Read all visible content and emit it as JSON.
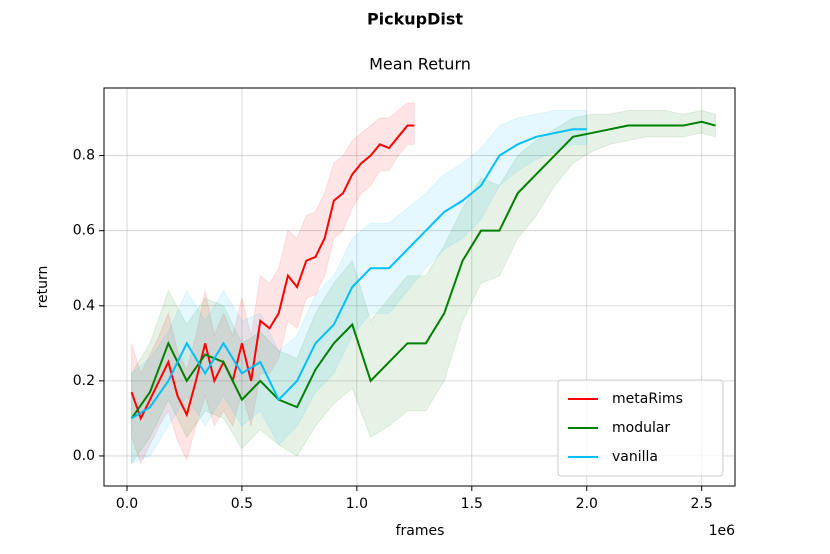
{
  "chart_data": {
    "type": "line",
    "title": "PickupDist",
    "subtitle": "Mean Return",
    "x_label": "frames",
    "y_label": "return",
    "x_offset_label": "1e6",
    "xlim": [
      -0.1,
      2.645
    ],
    "ylim": [
      -0.08,
      0.98
    ],
    "xticks": [
      {
        "value": 0,
        "label": "0.0"
      },
      {
        "value": 0.5,
        "label": "0.5"
      },
      {
        "value": 1,
        "label": "1.0"
      },
      {
        "value": 1.5,
        "label": "1.5"
      },
      {
        "value": 2,
        "label": "2.0"
      },
      {
        "value": 2.5,
        "label": "2.5"
      }
    ],
    "yticks": [
      {
        "value": 0,
        "label": "0.0"
      },
      0.2,
      0.4,
      0.6,
      0.8
    ],
    "grid": true,
    "legend": "lower right",
    "series": [
      {
        "name": "metaRims",
        "color": "#ff0000",
        "x": [
          0.02,
          0.06,
          0.1,
          0.14,
          0.18,
          0.22,
          0.26,
          0.3,
          0.34,
          0.38,
          0.42,
          0.46,
          0.5,
          0.54,
          0.58,
          0.62,
          0.66,
          0.7,
          0.74,
          0.78,
          0.82,
          0.86,
          0.9,
          0.94,
          0.98,
          1.02,
          1.06,
          1.1,
          1.14,
          1.18,
          1.22,
          1.25
        ],
        "values": [
          0.17,
          0.1,
          0.15,
          0.2,
          0.25,
          0.16,
          0.11,
          0.2,
          0.3,
          0.2,
          0.25,
          0.2,
          0.3,
          0.2,
          0.36,
          0.34,
          0.38,
          0.48,
          0.45,
          0.52,
          0.53,
          0.58,
          0.68,
          0.7,
          0.75,
          0.78,
          0.8,
          0.83,
          0.82,
          0.85,
          0.88,
          0.88
        ],
        "lower": [
          0.05,
          -0.02,
          0.03,
          0.08,
          0.12,
          0.04,
          -0.01,
          0.08,
          0.16,
          0.08,
          0.12,
          0.08,
          0.17,
          0.08,
          0.22,
          0.22,
          0.26,
          0.36,
          0.34,
          0.42,
          0.43,
          0.48,
          0.58,
          0.6,
          0.66,
          0.7,
          0.72,
          0.76,
          0.76,
          0.8,
          0.83,
          0.83
        ],
        "upper": [
          0.3,
          0.22,
          0.27,
          0.32,
          0.38,
          0.28,
          0.23,
          0.32,
          0.44,
          0.32,
          0.38,
          0.32,
          0.42,
          0.32,
          0.48,
          0.46,
          0.5,
          0.6,
          0.58,
          0.64,
          0.65,
          0.7,
          0.78,
          0.8,
          0.84,
          0.86,
          0.88,
          0.9,
          0.9,
          0.92,
          0.94,
          0.94
        ]
      },
      {
        "name": "modular",
        "color": "#008000",
        "x": [
          0.02,
          0.1,
          0.18,
          0.26,
          0.34,
          0.42,
          0.5,
          0.58,
          0.66,
          0.74,
          0.82,
          0.9,
          0.98,
          1.06,
          1.14,
          1.22,
          1.3,
          1.38,
          1.46,
          1.54,
          1.62,
          1.7,
          1.78,
          1.86,
          1.94,
          2.02,
          2.1,
          2.18,
          2.26,
          2.34,
          2.42,
          2.5,
          2.56
        ],
        "values": [
          0.1,
          0.17,
          0.3,
          0.2,
          0.27,
          0.25,
          0.15,
          0.2,
          0.15,
          0.13,
          0.23,
          0.3,
          0.35,
          0.2,
          0.25,
          0.3,
          0.3,
          0.38,
          0.52,
          0.6,
          0.6,
          0.7,
          0.75,
          0.8,
          0.85,
          0.86,
          0.87,
          0.88,
          0.88,
          0.88,
          0.88,
          0.89,
          0.88
        ],
        "lower": [
          -0.02,
          0.05,
          0.15,
          0.05,
          0.12,
          0.1,
          0.02,
          0.07,
          0.03,
          0.0,
          0.08,
          0.14,
          0.18,
          0.05,
          0.08,
          0.12,
          0.12,
          0.2,
          0.36,
          0.46,
          0.48,
          0.58,
          0.64,
          0.72,
          0.78,
          0.81,
          0.83,
          0.84,
          0.85,
          0.85,
          0.85,
          0.86,
          0.85
        ],
        "upper": [
          0.22,
          0.3,
          0.44,
          0.35,
          0.42,
          0.4,
          0.3,
          0.33,
          0.28,
          0.26,
          0.38,
          0.46,
          0.52,
          0.36,
          0.42,
          0.48,
          0.48,
          0.56,
          0.66,
          0.74,
          0.72,
          0.8,
          0.84,
          0.87,
          0.9,
          0.91,
          0.91,
          0.92,
          0.92,
          0.92,
          0.91,
          0.92,
          0.91
        ]
      },
      {
        "name": "vanilla",
        "color": "#00bfff",
        "x": [
          0.02,
          0.1,
          0.18,
          0.26,
          0.34,
          0.42,
          0.5,
          0.58,
          0.66,
          0.74,
          0.82,
          0.9,
          0.98,
          1.06,
          1.14,
          1.22,
          1.3,
          1.38,
          1.46,
          1.54,
          1.62,
          1.7,
          1.78,
          1.86,
          1.94,
          2.0
        ],
        "values": [
          0.1,
          0.13,
          0.2,
          0.3,
          0.22,
          0.3,
          0.22,
          0.25,
          0.15,
          0.2,
          0.3,
          0.35,
          0.45,
          0.5,
          0.5,
          0.55,
          0.6,
          0.65,
          0.68,
          0.72,
          0.8,
          0.83,
          0.85,
          0.86,
          0.87,
          0.87
        ],
        "lower": [
          -0.02,
          0.0,
          0.08,
          0.16,
          0.08,
          0.16,
          0.08,
          0.12,
          0.03,
          0.08,
          0.17,
          0.22,
          0.32,
          0.38,
          0.38,
          0.44,
          0.5,
          0.55,
          0.58,
          0.63,
          0.72,
          0.76,
          0.79,
          0.81,
          0.83,
          0.83
        ],
        "upper": [
          0.22,
          0.26,
          0.33,
          0.44,
          0.36,
          0.44,
          0.36,
          0.38,
          0.28,
          0.32,
          0.43,
          0.48,
          0.58,
          0.62,
          0.62,
          0.66,
          0.7,
          0.75,
          0.78,
          0.82,
          0.88,
          0.9,
          0.91,
          0.92,
          0.92,
          0.92
        ]
      }
    ]
  }
}
